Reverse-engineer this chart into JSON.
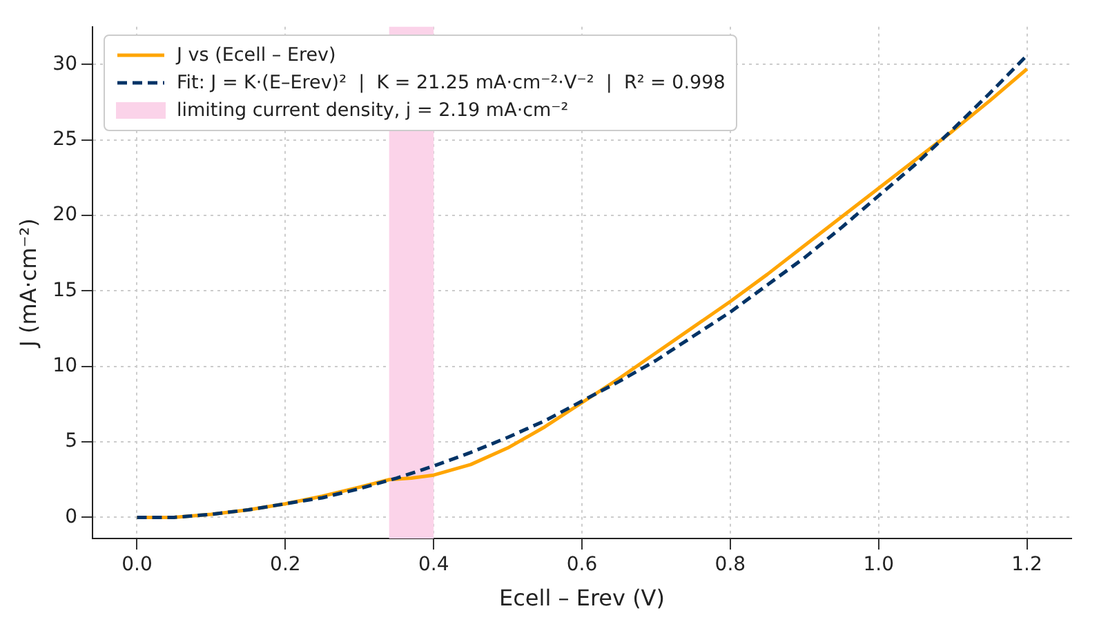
{
  "chart_data": {
    "type": "line",
    "xlabel": "Ecell – Erev (V)",
    "ylabel": "J (mA·cm⁻²)",
    "x": [
      0,
      0.05,
      0.1,
      0.15,
      0.2,
      0.25,
      0.3,
      0.34,
      0.37,
      0.4,
      0.45,
      0.5,
      0.55,
      0.6,
      0.65,
      0.7,
      0.75,
      0.8,
      0.85,
      0.9,
      0.95,
      1.0,
      1.05,
      1.1,
      1.15,
      1.2
    ],
    "series": [
      {
        "name": "J vs (Ecell – Erev)",
        "color": "#ffa500",
        "line_style": "solid",
        "values": [
          0,
          0,
          0.2,
          0.5,
          0.9,
          1.4,
          2,
          2.5,
          2.6,
          2.8,
          3.5,
          4.6,
          6,
          7.6,
          9.2,
          10.9,
          12.6,
          14.3,
          16.1,
          18,
          19.9,
          21.8,
          23.7,
          25.6,
          27.6,
          29.7
        ]
      },
      {
        "name": "Fit: J = K·(E–Erev)²  |  K = 21.25 mA·cm⁻²·V⁻²  |  R² = 0.998",
        "color": "#003366",
        "line_style": "dashed",
        "x": [
          0,
          0.05,
          0.1,
          0.15,
          0.2,
          0.25,
          0.3,
          0.35,
          0.4,
          0.45,
          0.5,
          0.55,
          0.6,
          0.65,
          0.7,
          0.75,
          0.8,
          0.85,
          0.9,
          0.95,
          1.0,
          1.05,
          1.1,
          1.15,
          1.2
        ],
        "values": [
          0,
          0,
          0.2,
          0.5,
          0.9,
          1.3,
          1.9,
          2.6,
          3.4,
          4.3,
          5.3,
          6.4,
          7.7,
          9,
          10.4,
          12,
          13.6,
          15.4,
          17.2,
          19.2,
          21.3,
          23.4,
          25.7,
          28.1,
          30.6
        ]
      }
    ],
    "bands": [
      {
        "axis": "x",
        "from": 0.34,
        "to": 0.4,
        "label": "limiting current density, j = 2.19 mA·cm⁻²",
        "color": "#fbd3e9"
      }
    ],
    "xlim": [
      -0.06,
      1.26
    ],
    "xticks": [
      {
        "value": 0,
        "label": "0.0"
      },
      0.2,
      0.4,
      0.6,
      0.8,
      {
        "value": 1,
        "label": "1.0"
      },
      1.2
    ],
    "ylim": [
      -1.4,
      32.5
    ],
    "yticks": [
      0,
      5,
      10,
      15,
      20,
      25,
      30
    ],
    "grid": true,
    "legend": "top left",
    "marker": "none"
  }
}
